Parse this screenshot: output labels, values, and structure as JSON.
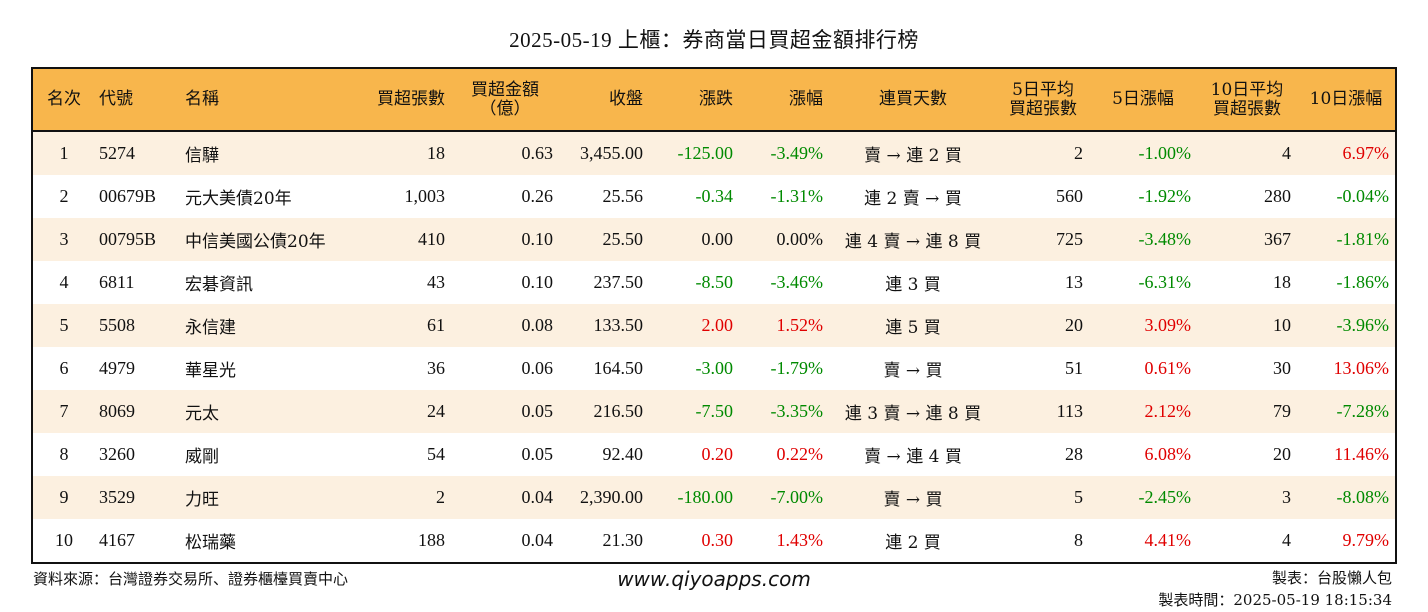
{
  "title": "2025-05-19 上櫃：券商當日買超金額排行榜",
  "colors": {
    "header_bg": "#f8b64c",
    "row_alt": "#fcf0e0",
    "up": "#e00000",
    "down": "#008a00"
  },
  "columns": {
    "rank": "名次",
    "code": "代號",
    "name": "名稱",
    "shares": "買超張數",
    "amount_line1": "買超金額",
    "amount_line2": "（億）",
    "close": "收盤",
    "change": "漲跌",
    "pct": "漲幅",
    "streak": "連買天數",
    "avg5_line1": "5日平均",
    "avg5_line2": "買超張數",
    "pct5": "5日漲幅",
    "avg10_line1": "10日平均",
    "avg10_line2": "買超張數",
    "pct10": "10日漲幅"
  },
  "rows": [
    {
      "rank": "1",
      "code": "5274",
      "name": "信驊",
      "shares": "18",
      "amount": "0.63",
      "close": "3,455.00",
      "change": "-125.00",
      "pct": "-3.49%",
      "streak": "賣 → 連 2 買",
      "avg5": "2",
      "pct5": "-1.00%",
      "avg10": "4",
      "pct10": "6.97%"
    },
    {
      "rank": "2",
      "code": "00679B",
      "name": "元大美債20年",
      "shares": "1,003",
      "amount": "0.26",
      "close": "25.56",
      "change": "-0.34",
      "pct": "-1.31%",
      "streak": "連 2 賣 → 買",
      "avg5": "560",
      "pct5": "-1.92%",
      "avg10": "280",
      "pct10": "-0.04%"
    },
    {
      "rank": "3",
      "code": "00795B",
      "name": "中信美國公債20年",
      "shares": "410",
      "amount": "0.10",
      "close": "25.50",
      "change": "0.00",
      "pct": "0.00%",
      "streak": "連 4 賣 → 連 8 買",
      "avg5": "725",
      "pct5": "-3.48%",
      "avg10": "367",
      "pct10": "-1.81%"
    },
    {
      "rank": "4",
      "code": "6811",
      "name": "宏碁資訊",
      "shares": "43",
      "amount": "0.10",
      "close": "237.50",
      "change": "-8.50",
      "pct": "-3.46%",
      "streak": "連 3 買",
      "avg5": "13",
      "pct5": "-6.31%",
      "avg10": "18",
      "pct10": "-1.86%"
    },
    {
      "rank": "5",
      "code": "5508",
      "name": "永信建",
      "shares": "61",
      "amount": "0.08",
      "close": "133.50",
      "change": "2.00",
      "pct": "1.52%",
      "streak": "連 5 買",
      "avg5": "20",
      "pct5": "3.09%",
      "avg10": "10",
      "pct10": "-3.96%"
    },
    {
      "rank": "6",
      "code": "4979",
      "name": "華星光",
      "shares": "36",
      "amount": "0.06",
      "close": "164.50",
      "change": "-3.00",
      "pct": "-1.79%",
      "streak": "賣 → 買",
      "avg5": "51",
      "pct5": "0.61%",
      "avg10": "30",
      "pct10": "13.06%"
    },
    {
      "rank": "7",
      "code": "8069",
      "name": "元太",
      "shares": "24",
      "amount": "0.05",
      "close": "216.50",
      "change": "-7.50",
      "pct": "-3.35%",
      "streak": "連 3 賣 → 連 8 買",
      "avg5": "113",
      "pct5": "2.12%",
      "avg10": "79",
      "pct10": "-7.28%"
    },
    {
      "rank": "8",
      "code": "3260",
      "name": "威剛",
      "shares": "54",
      "amount": "0.05",
      "close": "92.40",
      "change": "0.20",
      "pct": "0.22%",
      "streak": "賣 → 連 4 買",
      "avg5": "28",
      "pct5": "6.08%",
      "avg10": "20",
      "pct10": "11.46%"
    },
    {
      "rank": "9",
      "code": "3529",
      "name": "力旺",
      "shares": "2",
      "amount": "0.04",
      "close": "2,390.00",
      "change": "-180.00",
      "pct": "-7.00%",
      "streak": "賣 → 買",
      "avg5": "5",
      "pct5": "-2.45%",
      "avg10": "3",
      "pct10": "-8.08%"
    },
    {
      "rank": "10",
      "code": "4167",
      "name": "松瑞藥",
      "shares": "188",
      "amount": "0.04",
      "close": "21.30",
      "change": "0.30",
      "pct": "1.43%",
      "streak": "連 2 買",
      "avg5": "8",
      "pct5": "4.41%",
      "avg10": "4",
      "pct10": "9.79%"
    }
  ],
  "footer": {
    "source": "資料來源：台灣證券交易所、證券櫃檯買賣中心",
    "website": "www.qiyoapps.com",
    "author": "製表：台股懶人包",
    "made_time": "製表時間：2025-05-19 18:15:34"
  }
}
